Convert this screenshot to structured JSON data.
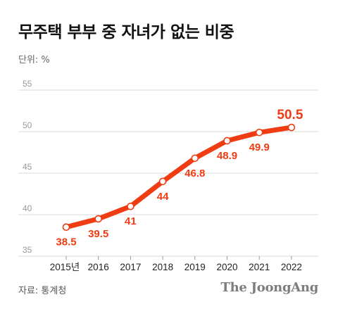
{
  "title": "무주택 부부 중 자녀가 없는 비중",
  "unit_label": "단위: %",
  "source": "자료: 통계청",
  "brand": "The JoongAng",
  "colors": {
    "line": "#f03c12",
    "grid": "#d9d9d9",
    "marker_fill": "#ffffff"
  },
  "chart_data": {
    "type": "line",
    "title": "무주택 부부 중 자녀가 없는 비중",
    "categories": [
      "2015년",
      "2016",
      "2017",
      "2018",
      "2019",
      "2020",
      "2021",
      "2022"
    ],
    "series": [
      {
        "values": [
          38.5,
          39.5,
          41,
          44,
          46.8,
          48.9,
          49.9,
          50.5
        ]
      }
    ],
    "data_labels": [
      "38.5",
      "39.5",
      "41",
      "44",
      "46.8",
      "48.9",
      "49.9",
      "50.5"
    ],
    "yticks": [
      35,
      40,
      45,
      50,
      55
    ],
    "ylim": [
      35,
      55
    ],
    "grid": true,
    "legend": "none"
  }
}
